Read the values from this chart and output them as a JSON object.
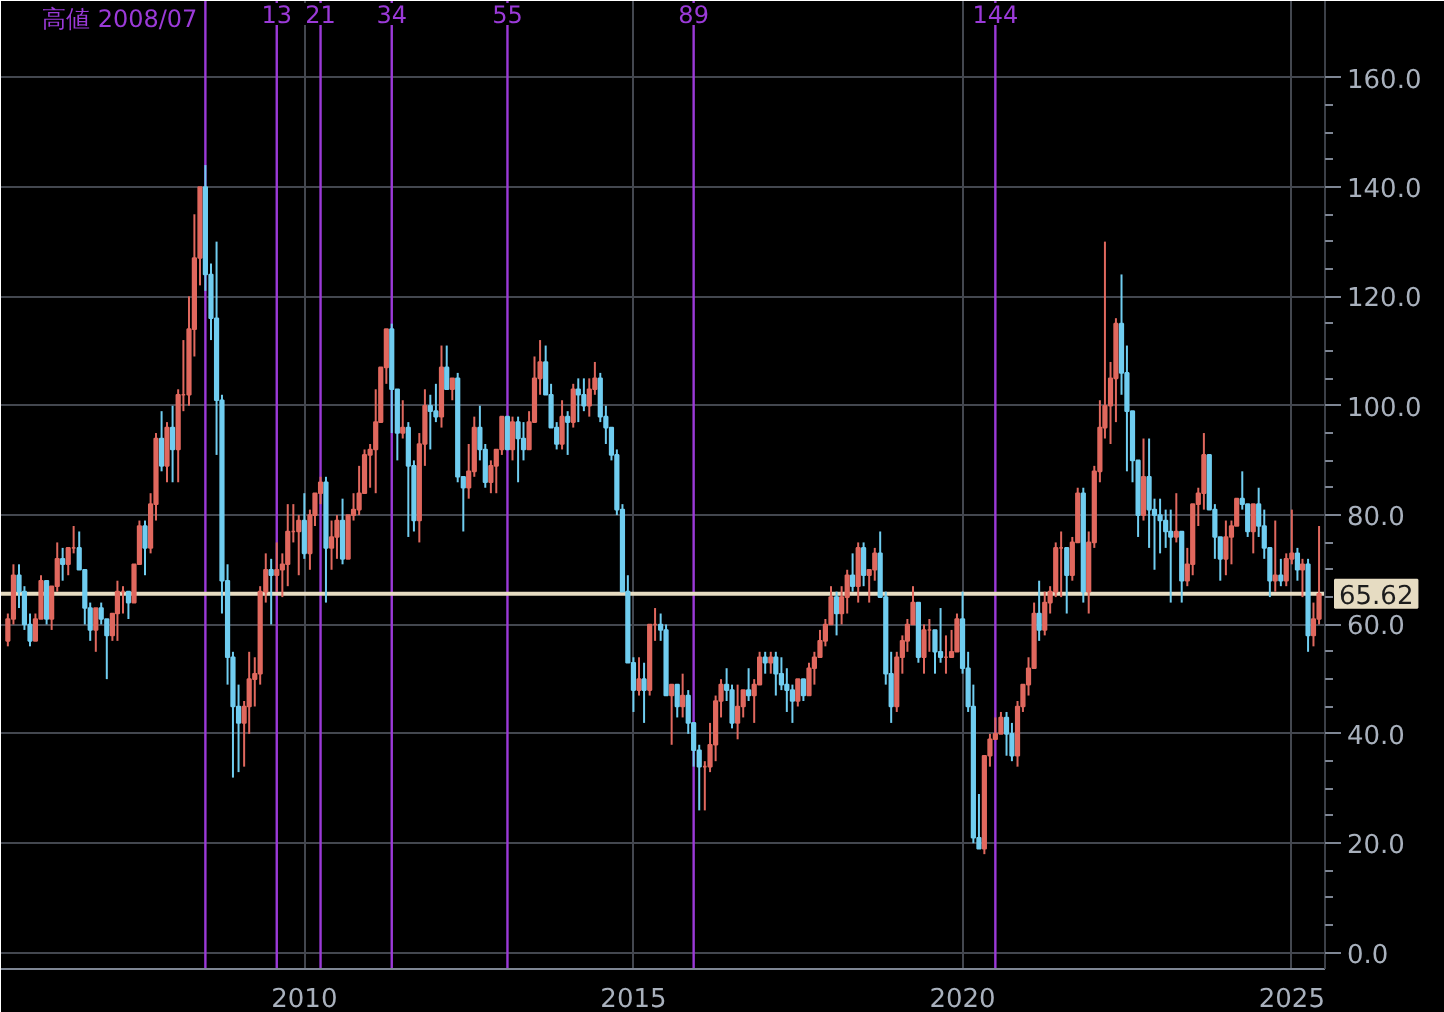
{
  "chart_data": {
    "type": "candlestick",
    "x": [
      "2005-07",
      "2005-08",
      "2005-09",
      "2005-10",
      "2005-11",
      "2005-12",
      "2006-01",
      "2006-02",
      "2006-03",
      "2006-04",
      "2006-05",
      "2006-06",
      "2006-07",
      "2006-08",
      "2006-09",
      "2006-10",
      "2006-11",
      "2006-12",
      "2007-01",
      "2007-02",
      "2007-03",
      "2007-04",
      "2007-05",
      "2007-06",
      "2007-07",
      "2007-08",
      "2007-09",
      "2007-10",
      "2007-11",
      "2007-12",
      "2008-01",
      "2008-02",
      "2008-03",
      "2008-04",
      "2008-05",
      "2008-06",
      "2008-07",
      "2008-08",
      "2008-09",
      "2008-10",
      "2008-11",
      "2008-12",
      "2009-01",
      "2009-02",
      "2009-03",
      "2009-04",
      "2009-05",
      "2009-06",
      "2009-07",
      "2009-08",
      "2009-09",
      "2009-10",
      "2009-11",
      "2009-12",
      "2010-01",
      "2010-02",
      "2010-03",
      "2010-04",
      "2010-05",
      "2010-06",
      "2010-07",
      "2010-08",
      "2010-09",
      "2010-10",
      "2010-11",
      "2010-12",
      "2011-01",
      "2011-02",
      "2011-03",
      "2011-04",
      "2011-05",
      "2011-06",
      "2011-07",
      "2011-08",
      "2011-09",
      "2011-10",
      "2011-11",
      "2011-12",
      "2012-01",
      "2012-02",
      "2012-03",
      "2012-04",
      "2012-05",
      "2012-06",
      "2012-07",
      "2012-08",
      "2012-09",
      "2012-10",
      "2012-11",
      "2012-12",
      "2013-01",
      "2013-02",
      "2013-03",
      "2013-04",
      "2013-05",
      "2013-06",
      "2013-07",
      "2013-08",
      "2013-09",
      "2013-10",
      "2013-11",
      "2013-12",
      "2014-01",
      "2014-02",
      "2014-03",
      "2014-04",
      "2014-05",
      "2014-06",
      "2014-07",
      "2014-08",
      "2014-09",
      "2014-10",
      "2014-11",
      "2014-12",
      "2015-01",
      "2015-02",
      "2015-03",
      "2015-04",
      "2015-05",
      "2015-06",
      "2015-07",
      "2015-08",
      "2015-09",
      "2015-10",
      "2015-11",
      "2015-12",
      "2016-01",
      "2016-02",
      "2016-03",
      "2016-04",
      "2016-05",
      "2016-06",
      "2016-07",
      "2016-08",
      "2016-09",
      "2016-10",
      "2016-11",
      "2016-12",
      "2017-01",
      "2017-02",
      "2017-03",
      "2017-04",
      "2017-05",
      "2017-06",
      "2017-07",
      "2017-08",
      "2017-09",
      "2017-10",
      "2017-11",
      "2017-12",
      "2018-01",
      "2018-02",
      "2018-03",
      "2018-04",
      "2018-05",
      "2018-06",
      "2018-07",
      "2018-08",
      "2018-09",
      "2018-10",
      "2018-11",
      "2018-12",
      "2019-01",
      "2019-02",
      "2019-03",
      "2019-04",
      "2019-05",
      "2019-06",
      "2019-07",
      "2019-08",
      "2019-09",
      "2019-10",
      "2019-11",
      "2019-12",
      "2020-01",
      "2020-02",
      "2020-03",
      "2020-04",
      "2020-05",
      "2020-06",
      "2020-07",
      "2020-08",
      "2020-09",
      "2020-10",
      "2020-11",
      "2020-12",
      "2021-01",
      "2021-02",
      "2021-03",
      "2021-04",
      "2021-05",
      "2021-06",
      "2021-07",
      "2021-08",
      "2021-09",
      "2021-10",
      "2021-11",
      "2021-12",
      "2022-01",
      "2022-02",
      "2022-03",
      "2022-04",
      "2022-05",
      "2022-06",
      "2022-07",
      "2022-08",
      "2022-09",
      "2022-10",
      "2022-11",
      "2022-12",
      "2023-01",
      "2023-02",
      "2023-03",
      "2023-04",
      "2023-05",
      "2023-06",
      "2023-07",
      "2023-08",
      "2023-09",
      "2023-10",
      "2023-11",
      "2023-12",
      "2024-01",
      "2024-02",
      "2024-03",
      "2024-04",
      "2024-05",
      "2024-06",
      "2024-07",
      "2024-08",
      "2024-09",
      "2024-10",
      "2024-11",
      "2024-12",
      "2025-01",
      "2025-02",
      "2025-03",
      "2025-04",
      "2025-05",
      "2025-06"
    ],
    "ohlc": [
      [
        57,
        62,
        56,
        61
      ],
      [
        61,
        71,
        60,
        69
      ],
      [
        69,
        71,
        63,
        66
      ],
      [
        66,
        67,
        59,
        60
      ],
      [
        60,
        62,
        56,
        57
      ],
      [
        57,
        62,
        57,
        61
      ],
      [
        61,
        69,
        61,
        68
      ],
      [
        68,
        68,
        60,
        61
      ],
      [
        61,
        67,
        59,
        67
      ],
      [
        67,
        75,
        66,
        72
      ],
      [
        72,
        74,
        68,
        71
      ],
      [
        71,
        74,
        69,
        74
      ],
      [
        74,
        78,
        73,
        74
      ],
      [
        74,
        77,
        70,
        70
      ],
      [
        70,
        70,
        60,
        63
      ],
      [
        63,
        64,
        57,
        59
      ],
      [
        59,
        63,
        55,
        63
      ],
      [
        63,
        64,
        60,
        61
      ],
      [
        61,
        61,
        50,
        58
      ],
      [
        58,
        62,
        57,
        62
      ],
      [
        62,
        68,
        57,
        66
      ],
      [
        66,
        67,
        62,
        66
      ],
      [
        66,
        66,
        61,
        64
      ],
      [
        64,
        71,
        64,
        71
      ],
      [
        71,
        79,
        71,
        78
      ],
      [
        78,
        79,
        69,
        74
      ],
      [
        74,
        84,
        73,
        82
      ],
      [
        82,
        95,
        79,
        94
      ],
      [
        94,
        99,
        88,
        89
      ],
      [
        89,
        97,
        86,
        96
      ],
      [
        96,
        100,
        86,
        92
      ],
      [
        92,
        103,
        86,
        102
      ],
      [
        102,
        112,
        99,
        102
      ],
      [
        102,
        120,
        100,
        114
      ],
      [
        114,
        135,
        109,
        127
      ],
      [
        127,
        140,
        122,
        140
      ],
      [
        140,
        144,
        121,
        124
      ],
      [
        124,
        126,
        112,
        116
      ],
      [
        116,
        130,
        91,
        101
      ],
      [
        101,
        102,
        62,
        68
      ],
      [
        68,
        71,
        49,
        54
      ],
      [
        54,
        55,
        32,
        45
      ],
      [
        45,
        49,
        33,
        42
      ],
      [
        42,
        46,
        34,
        45
      ],
      [
        45,
        55,
        40,
        50
      ],
      [
        50,
        54,
        45,
        51
      ],
      [
        51,
        67,
        49,
        66
      ],
      [
        66,
        73,
        64,
        70
      ],
      [
        70,
        72,
        60,
        69
      ],
      [
        69,
        75,
        66,
        70
      ],
      [
        70,
        73,
        65,
        71
      ],
      [
        71,
        82,
        67,
        77
      ],
      [
        77,
        82,
        75,
        77
      ],
      [
        77,
        80,
        69,
        79
      ],
      [
        79,
        84,
        72,
        73
      ],
      [
        73,
        81,
        70,
        80
      ],
      [
        80,
        84,
        78,
        84
      ],
      [
        84,
        87,
        82,
        86
      ],
      [
        86,
        87,
        64,
        74
      ],
      [
        74,
        79,
        70,
        76
      ],
      [
        76,
        80,
        72,
        79
      ],
      [
        79,
        83,
        71,
        72
      ],
      [
        72,
        80,
        72,
        80
      ],
      [
        80,
        84,
        79,
        81
      ],
      [
        81,
        89,
        80,
        84
      ],
      [
        84,
        92,
        84,
        91
      ],
      [
        91,
        93,
        85,
        92
      ],
      [
        92,
        103,
        84,
        97
      ],
      [
        97,
        107,
        97,
        107
      ],
      [
        107,
        114,
        104,
        114
      ],
      [
        114,
        115,
        95,
        103
      ],
      [
        103,
        103,
        90,
        95
      ],
      [
        95,
        101,
        94,
        96
      ],
      [
        96,
        97,
        76,
        89
      ],
      [
        89,
        90,
        77,
        79
      ],
      [
        79,
        95,
        75,
        93
      ],
      [
        93,
        103,
        89,
        100
      ],
      [
        100,
        102,
        92,
        99
      ],
      [
        99,
        104,
        97,
        98
      ],
      [
        98,
        111,
        96,
        107
      ],
      [
        107,
        111,
        103,
        103
      ],
      [
        103,
        105,
        101,
        105
      ],
      [
        105,
        106,
        86,
        87
      ],
      [
        87,
        87,
        77,
        85
      ],
      [
        85,
        93,
        83,
        88
      ],
      [
        88,
        98,
        87,
        96
      ],
      [
        96,
        100,
        90,
        92
      ],
      [
        92,
        93,
        85,
        86
      ],
      [
        86,
        90,
        84,
        89
      ],
      [
        89,
        92,
        84,
        92
      ],
      [
        92,
        98,
        91,
        98
      ],
      [
        98,
        98,
        92,
        92
      ],
      [
        92,
        98,
        90,
        97
      ],
      [
        97,
        98,
        86,
        94
      ],
      [
        94,
        97,
        90,
        92
      ],
      [
        92,
        99,
        92,
        97
      ],
      [
        97,
        109,
        97,
        105
      ],
      [
        105,
        112,
        102,
        108
      ],
      [
        108,
        111,
        102,
        102
      ],
      [
        102,
        104,
        96,
        96
      ],
      [
        96,
        97,
        92,
        93
      ],
      [
        93,
        101,
        92,
        98
      ],
      [
        98,
        99,
        91,
        97
      ],
      [
        97,
        104,
        96,
        103
      ],
      [
        103,
        105,
        97,
        102
      ],
      [
        102,
        105,
        99,
        100
      ],
      [
        100,
        105,
        98,
        103
      ],
      [
        103,
        108,
        102,
        105
      ],
      [
        105,
        106,
        97,
        98
      ],
      [
        98,
        100,
        93,
        96
      ],
      [
        96,
        96,
        90,
        91
      ],
      [
        91,
        92,
        80,
        81
      ],
      [
        81,
        82,
        66,
        66
      ],
      [
        66,
        69,
        53,
        53
      ],
      [
        53,
        54,
        44,
        48
      ],
      [
        48,
        54,
        47,
        50
      ],
      [
        50,
        53,
        42,
        48
      ],
      [
        48,
        60,
        47,
        60
      ],
      [
        60,
        63,
        57,
        60
      ],
      [
        60,
        62,
        57,
        59
      ],
      [
        59,
        60,
        47,
        47
      ],
      [
        47,
        49,
        38,
        49
      ],
      [
        49,
        49,
        43,
        45
      ],
      [
        45,
        51,
        43,
        47
      ],
      [
        47,
        48,
        40,
        42
      ],
      [
        42,
        42,
        34,
        37
      ],
      [
        37,
        38,
        26,
        34
      ],
      [
        34,
        35,
        26,
        34
      ],
      [
        34,
        42,
        33,
        38
      ],
      [
        38,
        47,
        35,
        46
      ],
      [
        46,
        50,
        43,
        49
      ],
      [
        49,
        52,
        46,
        48
      ],
      [
        48,
        49,
        41,
        42
      ],
      [
        42,
        49,
        39,
        45
      ],
      [
        45,
        48,
        43,
        48
      ],
      [
        48,
        52,
        46,
        47
      ],
      [
        47,
        50,
        42,
        49
      ],
      [
        49,
        55,
        49,
        54
      ],
      [
        54,
        55,
        51,
        53
      ],
      [
        53,
        55,
        51,
        54
      ],
      [
        54,
        55,
        47,
        51
      ],
      [
        51,
        54,
        48,
        49
      ],
      [
        49,
        52,
        44,
        48
      ],
      [
        48,
        49,
        42,
        46
      ],
      [
        46,
        50,
        45,
        50
      ],
      [
        50,
        50,
        46,
        47
      ],
      [
        47,
        53,
        47,
        52
      ],
      [
        52,
        55,
        49,
        54
      ],
      [
        54,
        59,
        54,
        57
      ],
      [
        57,
        61,
        56,
        60
      ],
      [
        60,
        67,
        60,
        65
      ],
      [
        65,
        66,
        58,
        62
      ],
      [
        62,
        67,
        60,
        65
      ],
      [
        65,
        70,
        62,
        69
      ],
      [
        69,
        73,
        66,
        67
      ],
      [
        67,
        75,
        64,
        74
      ],
      [
        74,
        75,
        67,
        69
      ],
      [
        69,
        70,
        64,
        70
      ],
      [
        70,
        74,
        68,
        73
      ],
      [
        73,
        77,
        65,
        65
      ],
      [
        65,
        66,
        49,
        51
      ],
      [
        51,
        55,
        42,
        45
      ],
      [
        45,
        55,
        44,
        54
      ],
      [
        54,
        58,
        51,
        57
      ],
      [
        57,
        61,
        55,
        60
      ],
      [
        60,
        67,
        60,
        64
      ],
      [
        64,
        64,
        53,
        54
      ],
      [
        54,
        60,
        51,
        59
      ],
      [
        59,
        61,
        55,
        59
      ],
      [
        59,
        59,
        51,
        55
      ],
      [
        55,
        63,
        53,
        54
      ],
      [
        54,
        58,
        51,
        54
      ],
      [
        54,
        59,
        54,
        55
      ],
      [
        55,
        62,
        55,
        61
      ],
      [
        61,
        66,
        51,
        52
      ],
      [
        52,
        55,
        44,
        45
      ],
      [
        45,
        49,
        20,
        21
      ],
      [
        21,
        29,
        19,
        19
      ],
      [
        19,
        36,
        18,
        36
      ],
      [
        36,
        40,
        34,
        39
      ],
      [
        39,
        43,
        39,
        40
      ],
      [
        40,
        44,
        40,
        43
      ],
      [
        43,
        44,
        36,
        40
      ],
      [
        40,
        42,
        35,
        36
      ],
      [
        36,
        46,
        34,
        45
      ],
      [
        45,
        49,
        44,
        49
      ],
      [
        49,
        54,
        47,
        52
      ],
      [
        52,
        64,
        52,
        62
      ],
      [
        62,
        68,
        57,
        59
      ],
      [
        59,
        66,
        58,
        64
      ],
      [
        64,
        67,
        62,
        66
      ],
      [
        66,
        75,
        65,
        74
      ],
      [
        74,
        77,
        65,
        74
      ],
      [
        74,
        74,
        62,
        69
      ],
      [
        69,
        76,
        68,
        75
      ],
      [
        75,
        85,
        75,
        84
      ],
      [
        84,
        85,
        64,
        66
      ],
      [
        66,
        77,
        62,
        75
      ],
      [
        75,
        89,
        74,
        88
      ],
      [
        88,
        101,
        86,
        96
      ],
      [
        96,
        130,
        94,
        100
      ],
      [
        100,
        108,
        93,
        105
      ],
      [
        105,
        116,
        97,
        115
      ],
      [
        115,
        124,
        102,
        106
      ],
      [
        106,
        111,
        88,
        99
      ],
      [
        99,
        99,
        86,
        90
      ],
      [
        90,
        90,
        76,
        80
      ],
      [
        80,
        94,
        79,
        87
      ],
      [
        87,
        94,
        74,
        81
      ],
      [
        81,
        83,
        70,
        80
      ],
      [
        80,
        83,
        73,
        79
      ],
      [
        79,
        81,
        74,
        77
      ],
      [
        77,
        81,
        64,
        76
      ],
      [
        76,
        84,
        75,
        77
      ],
      [
        77,
        77,
        64,
        68
      ],
      [
        68,
        74,
        67,
        71
      ],
      [
        71,
        82,
        69,
        82
      ],
      [
        82,
        85,
        78,
        84
      ],
      [
        84,
        95,
        81,
        91
      ],
      [
        91,
        91,
        81,
        81
      ],
      [
        81,
        82,
        72,
        76
      ],
      [
        76,
        76,
        68,
        72
      ],
      [
        72,
        79,
        69,
        76
      ],
      [
        76,
        79,
        71,
        78
      ],
      [
        78,
        83,
        78,
        83
      ],
      [
        83,
        88,
        81,
        82
      ],
      [
        82,
        82,
        76,
        77
      ],
      [
        77,
        82,
        73,
        82
      ],
      [
        82,
        85,
        76,
        78
      ],
      [
        78,
        81,
        72,
        74
      ],
      [
        74,
        74,
        65,
        68
      ],
      [
        68,
        79,
        66,
        69
      ],
      [
        69,
        72,
        67,
        68
      ],
      [
        68,
        73,
        67,
        72
      ],
      [
        72,
        81,
        71,
        73
      ],
      [
        73,
        74,
        68,
        70
      ],
      [
        70,
        72,
        65,
        71
      ],
      [
        71,
        72,
        55,
        58
      ],
      [
        58,
        64,
        56,
        61
      ],
      [
        61,
        78,
        60,
        65.62
      ]
    ],
    "colors": [
      "#e0685e",
      "#e0685e",
      "#70cdf0",
      "#70cdf0",
      "#70cdf0",
      "#e0685e",
      "#e0685e",
      "#70cdf0",
      "#e0685e",
      "#e0685e",
      "#70cdf0",
      "#e0685e",
      "#e0685e",
      "#70cdf0",
      "#70cdf0",
      "#70cdf0",
      "#e0685e",
      "#70cdf0",
      "#70cdf0",
      "#e0685e",
      "#e0685e",
      "#e0685e",
      "#70cdf0",
      "#e0685e",
      "#e0685e",
      "#70cdf0",
      "#e0685e",
      "#e0685e",
      "#70cdf0",
      "#e0685e",
      "#70cdf0",
      "#e0685e",
      "#e0685e",
      "#e0685e",
      "#e0685e",
      "#e0685e",
      "#70cdf0",
      "#70cdf0",
      "#70cdf0",
      "#70cdf0",
      "#70cdf0",
      "#70cdf0",
      "#70cdf0",
      "#e0685e",
      "#e0685e",
      "#e0685e",
      "#e0685e",
      "#e0685e",
      "#70cdf0",
      "#e0685e",
      "#e0685e",
      "#e0685e",
      "#e0685e",
      "#e0685e",
      "#70cdf0",
      "#e0685e",
      "#e0685e",
      "#e0685e",
      "#70cdf0",
      "#e0685e",
      "#e0685e",
      "#70cdf0",
      "#e0685e",
      "#e0685e",
      "#e0685e",
      "#e0685e",
      "#e0685e",
      "#e0685e",
      "#e0685e",
      "#e0685e",
      "#70cdf0",
      "#70cdf0",
      "#e0685e",
      "#70cdf0",
      "#70cdf0",
      "#e0685e",
      "#e0685e",
      "#70cdf0",
      "#70cdf0",
      "#e0685e",
      "#70cdf0",
      "#e0685e",
      "#70cdf0",
      "#70cdf0",
      "#e0685e",
      "#e0685e",
      "#70cdf0",
      "#70cdf0",
      "#e0685e",
      "#e0685e",
      "#e0685e",
      "#70cdf0",
      "#e0685e",
      "#70cdf0",
      "#70cdf0",
      "#e0685e",
      "#e0685e",
      "#e0685e",
      "#70cdf0",
      "#70cdf0",
      "#70cdf0",
      "#e0685e",
      "#70cdf0",
      "#e0685e",
      "#70cdf0",
      "#70cdf0",
      "#e0685e",
      "#e0685e",
      "#70cdf0",
      "#70cdf0",
      "#70cdf0",
      "#70cdf0",
      "#70cdf0",
      "#70cdf0",
      "#70cdf0",
      "#e0685e",
      "#70cdf0",
      "#e0685e",
      "#e0685e",
      "#70cdf0",
      "#70cdf0",
      "#e0685e",
      "#70cdf0",
      "#e0685e",
      "#70cdf0",
      "#70cdf0",
      "#70cdf0",
      "#e0685e",
      "#e0685e",
      "#e0685e",
      "#e0685e",
      "#70cdf0",
      "#70cdf0",
      "#e0685e",
      "#e0685e",
      "#70cdf0",
      "#e0685e",
      "#e0685e",
      "#70cdf0",
      "#e0685e",
      "#70cdf0",
      "#70cdf0",
      "#70cdf0",
      "#70cdf0",
      "#e0685e",
      "#70cdf0",
      "#e0685e",
      "#e0685e",
      "#e0685e",
      "#e0685e",
      "#e0685e",
      "#70cdf0",
      "#e0685e",
      "#e0685e",
      "#70cdf0",
      "#e0685e",
      "#70cdf0",
      "#e0685e",
      "#e0685e",
      "#70cdf0",
      "#70cdf0",
      "#70cdf0",
      "#e0685e",
      "#e0685e",
      "#e0685e",
      "#e0685e",
      "#70cdf0",
      "#e0685e",
      "#e0685e",
      "#70cdf0",
      "#70cdf0",
      "#e0685e",
      "#e0685e",
      "#e0685e",
      "#70cdf0",
      "#70cdf0",
      "#70cdf0",
      "#70cdf0",
      "#e0685e",
      "#e0685e",
      "#e0685e",
      "#e0685e",
      "#70cdf0",
      "#70cdf0",
      "#e0685e",
      "#e0685e",
      "#e0685e",
      "#e0685e",
      "#70cdf0",
      "#e0685e",
      "#e0685e",
      "#e0685e",
      "#e0685e",
      "#70cdf0",
      "#e0685e",
      "#e0685e",
      "#70cdf0",
      "#e0685e",
      "#e0685e",
      "#e0685e",
      "#e0685e",
      "#e0685e",
      "#e0685e",
      "#70cdf0",
      "#70cdf0",
      "#70cdf0",
      "#70cdf0",
      "#e0685e",
      "#70cdf0",
      "#70cdf0",
      "#70cdf0",
      "#70cdf0",
      "#70cdf0",
      "#e0685e",
      "#70cdf0",
      "#e0685e",
      "#e0685e",
      "#e0685e",
      "#e0685e",
      "#70cdf0",
      "#70cdf0",
      "#70cdf0",
      "#e0685e",
      "#e0685e",
      "#e0685e",
      "#70cdf0",
      "#70cdf0",
      "#e0685e",
      "#70cdf0",
      "#70cdf0",
      "#70cdf0",
      "#e0685e",
      "#70cdf0",
      "#e0685e",
      "#e0685e",
      "#70cdf0",
      "#e0685e",
      "#70cdf0",
      "#e0685e",
      "#e0685e"
    ],
    "xlim": [
      "2005-05-24",
      "2025-07-04"
    ],
    "ylim": [
      -3,
      174
    ],
    "xticks": [
      "2010",
      "2015",
      "2020",
      "2025"
    ],
    "yticks": [
      {
        "value": 0,
        "label": "0.0"
      },
      {
        "value": 5,
        "label": null
      },
      {
        "value": 10,
        "label": null
      },
      {
        "value": 15,
        "label": null
      },
      {
        "value": 20,
        "label": "20.0"
      },
      {
        "value": 25,
        "label": null
      },
      {
        "value": 30,
        "label": null
      },
      {
        "value": 35,
        "label": null
      },
      {
        "value": 40,
        "label": "40.0"
      },
      {
        "value": 45,
        "label": null
      },
      {
        "value": 50,
        "label": null
      },
      {
        "value": 55,
        "label": null
      },
      {
        "value": 60,
        "label": "60.0"
      },
      {
        "value": 65,
        "label": null
      },
      {
        "value": 70,
        "label": null
      },
      {
        "value": 75,
        "label": null
      },
      {
        "value": 80,
        "label": "80.0"
      },
      {
        "value": 85,
        "label": null
      },
      {
        "value": 90,
        "label": null
      },
      {
        "value": 95,
        "label": null
      },
      {
        "value": 100,
        "label": "100.0"
      },
      {
        "value": 105,
        "label": null
      },
      {
        "value": 110,
        "label": null
      },
      {
        "value": 115,
        "label": null
      },
      {
        "value": 120,
        "label": "120.0"
      },
      {
        "value": 125,
        "label": null
      },
      {
        "value": 130,
        "label": null
      },
      {
        "value": 135,
        "label": null
      },
      {
        "value": 140,
        "label": "140.0"
      },
      {
        "value": 145,
        "label": null
      },
      {
        "value": 150,
        "label": null
      },
      {
        "value": 155,
        "label": null
      },
      {
        "value": 160,
        "label": "160.0"
      }
    ],
    "grid": true,
    "ref_lines": [
      {
        "axis": "x",
        "value": "2008-07",
        "label": "高値 2008/07",
        "color": "#9b3ad8",
        "line_style": "solid"
      },
      {
        "axis": "x",
        "value": "2009-08",
        "label": "13",
        "color": "#9b3ad8",
        "line_style": "solid"
      },
      {
        "axis": "x",
        "value": "2010-04",
        "label": "21",
        "color": "#9b3ad8",
        "line_style": "solid"
      },
      {
        "axis": "x",
        "value": "2011-05",
        "label": "34",
        "color": "#9b3ad8",
        "line_style": "solid"
      },
      {
        "axis": "x",
        "value": "2013-02",
        "label": "55",
        "color": "#9b3ad8",
        "line_style": "solid"
      },
      {
        "axis": "x",
        "value": "2015-12",
        "label": "89",
        "color": "#9b3ad8",
        "line_style": "solid"
      },
      {
        "axis": "x",
        "value": "2020-07",
        "label": "144",
        "color": "#9b3ad8",
        "line_style": "solid"
      },
      {
        "axis": "y",
        "value": 65.62,
        "label": "65.62",
        "color": "#e6dcc2",
        "line_style": "solid"
      }
    ]
  }
}
